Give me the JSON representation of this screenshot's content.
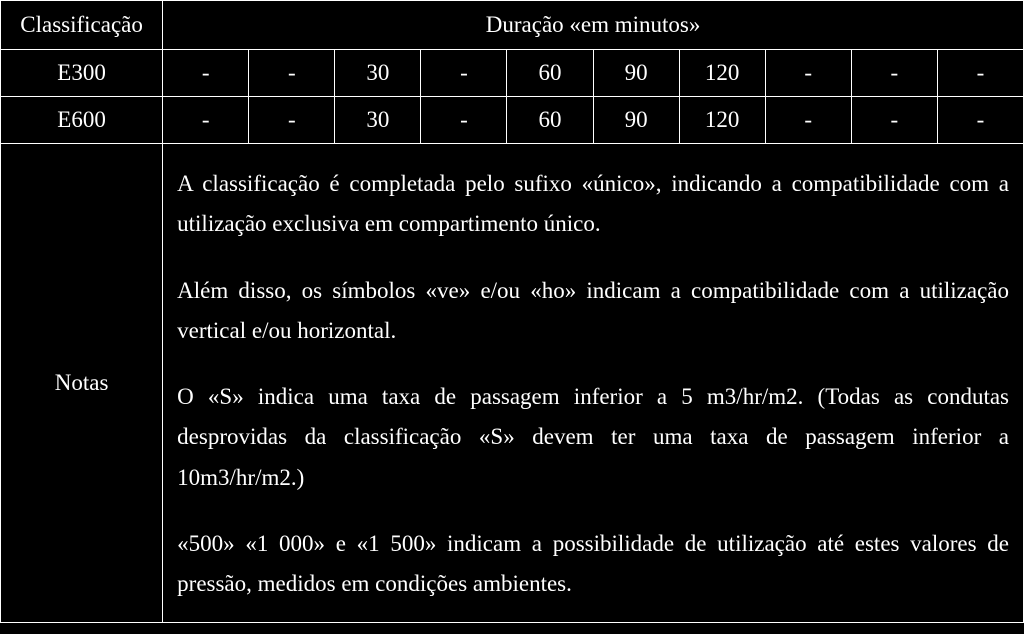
{
  "header": {
    "classification": "Classificação",
    "duration": "Duração «em minutos»"
  },
  "rows": [
    {
      "label": "E300",
      "values": [
        "-",
        "-",
        "30",
        "-",
        "60",
        "90",
        "120",
        "-",
        "-",
        "-"
      ]
    },
    {
      "label": "E600",
      "values": [
        "-",
        "-",
        "30",
        "-",
        "60",
        "90",
        "120",
        "-",
        "-",
        "-"
      ]
    }
  ],
  "notes": {
    "label": "Notas",
    "paragraphs": [
      "A classificação é completada pelo sufixo «único», indicando a compatibilidade com a utilização exclusiva em compartimento único.",
      "Além disso, os símbolos «ve» e/ou «ho» indicam a compatibilidade com a utilização vertical e/ou horizontal.",
      "O «S» indica uma taxa de passagem inferior a 5 m3/hr/m2. (Todas as condutas desprovidas da classificação «S» devem ter uma taxa de passagem inferior a 10m3/hr/m2.)",
      "«500» «1 000» e «1 500» indicam a possibilidade de utilização até estes valores de pressão, medidos em condições ambientes."
    ]
  },
  "colors": {
    "background": "#000000",
    "text": "#ffffff",
    "border": "#ffffff"
  },
  "fontsize": {
    "base": 23
  }
}
